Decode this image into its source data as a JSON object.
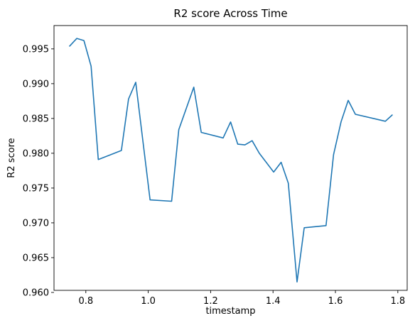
{
  "chart_data": {
    "type": "line",
    "title": "R2 score Across Time",
    "xlabel": "timestamp",
    "ylabel": "R2 score",
    "xlim": [
      0.698,
      1.83
    ],
    "ylim": [
      0.9603,
      0.99835
    ],
    "grid": false,
    "line_color": "#1f77b4",
    "x_ticks": [
      0.8,
      1.0,
      1.2,
      1.4,
      1.6,
      1.8
    ],
    "x_tick_labels": [
      "0.8",
      "1.0",
      "1.2",
      "1.4",
      "1.6",
      "1.8"
    ],
    "y_ticks": [
      0.96,
      0.965,
      0.97,
      0.975,
      0.98,
      0.985,
      0.99,
      0.995
    ],
    "y_tick_labels": [
      "0.960",
      "0.965",
      "0.970",
      "0.975",
      "0.980",
      "0.985",
      "0.990",
      "0.995"
    ],
    "series": [
      {
        "x": [
          0.748,
          0.771,
          0.794,
          0.817,
          0.84,
          0.914,
          0.937,
          0.96,
          1.006,
          1.075,
          1.098,
          1.146,
          1.17,
          1.24,
          1.264,
          1.287,
          1.31,
          1.333,
          1.356,
          1.402,
          1.426,
          1.449,
          1.477,
          1.5,
          1.57,
          1.594,
          1.618,
          1.641,
          1.664,
          1.76,
          1.782
        ],
        "y": [
          0.9954,
          0.9965,
          0.9962,
          0.9925,
          0.9791,
          0.9804,
          0.9878,
          0.9902,
          0.9733,
          0.9731,
          0.9834,
          0.9895,
          0.983,
          0.9822,
          0.9845,
          0.9813,
          0.9812,
          0.9818,
          0.98,
          0.9773,
          0.9787,
          0.9757,
          0.9615,
          0.9693,
          0.9696,
          0.9798,
          0.9845,
          0.9876,
          0.9856,
          0.9846,
          0.9855
        ]
      }
    ]
  }
}
